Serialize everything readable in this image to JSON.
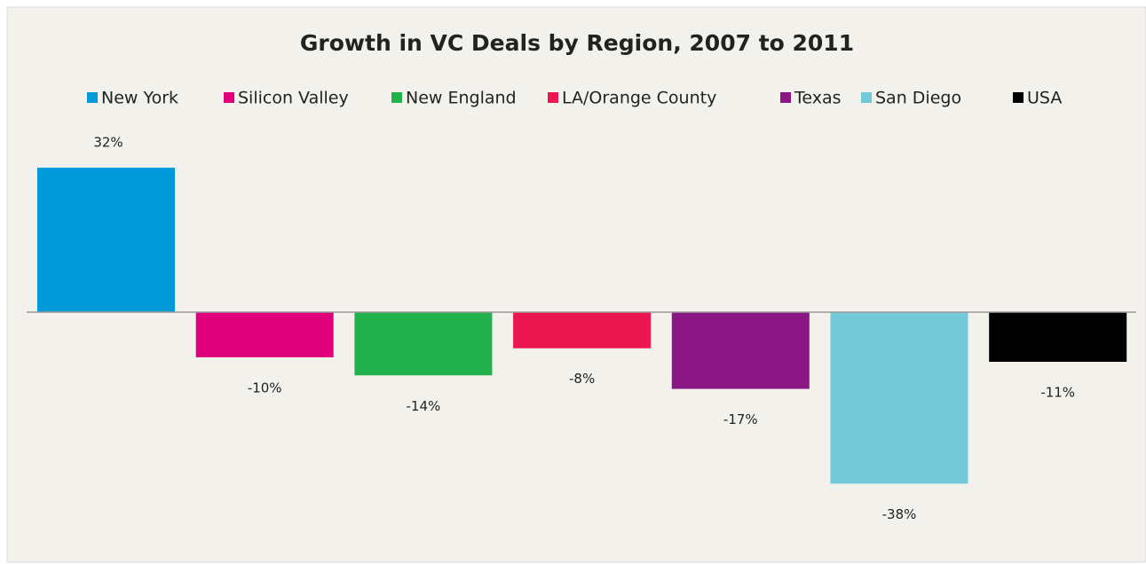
{
  "chart_data": {
    "type": "bar",
    "title": "Growth in VC Deals by Region, 2007 to 2011",
    "series": [
      {
        "name": "New York",
        "color": "#0099d9",
        "values": [
          32
        ],
        "value_labels": [
          "32%"
        ]
      },
      {
        "name": "Silicon Valley",
        "color": "#e0007b",
        "values": [
          -10
        ],
        "value_labels": [
          "-10%"
        ]
      },
      {
        "name": "New England",
        "color": "#22b14c",
        "values": [
          -14
        ],
        "value_labels": [
          "-14%"
        ]
      },
      {
        "name": "LA/Orange County",
        "color": "#ec1651",
        "values": [
          -8
        ],
        "value_labels": [
          "-8%"
        ]
      },
      {
        "name": "Texas",
        "color": "#8b1787",
        "values": [
          -17
        ],
        "value_labels": [
          "-17%"
        ]
      },
      {
        "name": "San Diego",
        "color": "#74c9d6",
        "values": [
          -38
        ],
        "value_labels": [
          "-38%"
        ]
      },
      {
        "name": "USA",
        "color": "#000000",
        "values": [
          -11
        ],
        "value_labels": [
          "-11%"
        ]
      }
    ]
  }
}
